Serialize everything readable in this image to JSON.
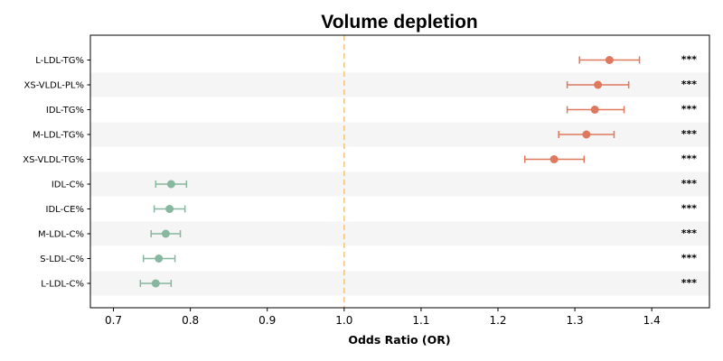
{
  "chart_data": {
    "type": "forest",
    "title": "Volume depletion",
    "xlabel": "Odds Ratio (OR)",
    "xlim": [
      0.67,
      1.475
    ],
    "xticks": [
      0.7,
      0.8,
      0.9,
      1.0,
      1.1,
      1.2,
      1.3,
      1.4
    ],
    "xtick_labels": [
      "0.7",
      "0.8",
      "0.9",
      "1.0",
      "1.1",
      "1.2",
      "1.3",
      "1.4"
    ],
    "reference_line": 1.0,
    "reference_color": "#f3c27a",
    "row_band_color": "#f5f5f5",
    "risk_color": "#de785e",
    "protective_color": "#88b79f",
    "rows": [
      {
        "label": "L-LDL-TG%",
        "or": 1.345,
        "lo": 1.306,
        "hi": 1.384,
        "sig": "***"
      },
      {
        "label": "XS-VLDL-PL%",
        "or": 1.33,
        "lo": 1.29,
        "hi": 1.37,
        "sig": "***"
      },
      {
        "label": "IDL-TG%",
        "or": 1.326,
        "lo": 1.29,
        "hi": 1.364,
        "sig": "***"
      },
      {
        "label": "M-LDL-TG%",
        "or": 1.315,
        "lo": 1.279,
        "hi": 1.351,
        "sig": "***"
      },
      {
        "label": "XS-VLDL-TG%",
        "or": 1.273,
        "lo": 1.235,
        "hi": 1.312,
        "sig": "***"
      },
      {
        "label": "IDL-C%",
        "or": 0.775,
        "lo": 0.755,
        "hi": 0.795,
        "sig": "***"
      },
      {
        "label": "IDL-CE%",
        "or": 0.773,
        "lo": 0.753,
        "hi": 0.793,
        "sig": "***"
      },
      {
        "label": "M-LDL-C%",
        "or": 0.768,
        "lo": 0.749,
        "hi": 0.787,
        "sig": "***"
      },
      {
        "label": "S-LDL-C%",
        "or": 0.759,
        "lo": 0.739,
        "hi": 0.78,
        "sig": "***"
      },
      {
        "label": "L-LDL-C%",
        "or": 0.755,
        "lo": 0.735,
        "hi": 0.775,
        "sig": "***"
      }
    ]
  }
}
